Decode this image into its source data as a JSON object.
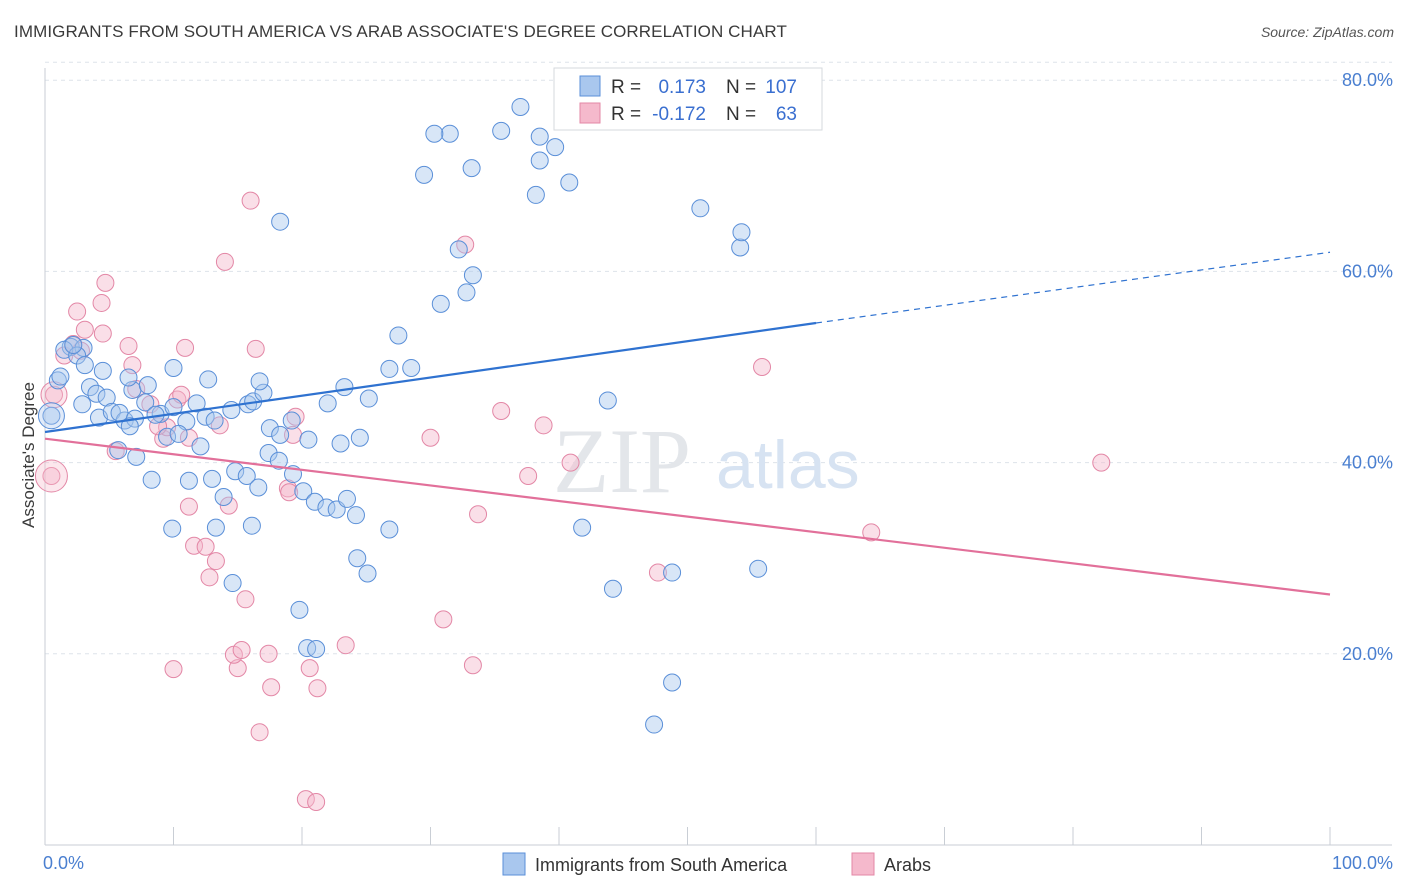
{
  "title": "IMMIGRANTS FROM SOUTH AMERICA VS ARAB ASSOCIATE'S DEGREE CORRELATION CHART",
  "source": "Source: ZipAtlas.com",
  "watermark": {
    "zip": "ZIP",
    "atlas": "atlas"
  },
  "colors": {
    "blue_fill": "#a9c7ee",
    "blue_stroke": "#5a8fd8",
    "blue_line": "#2f72d0",
    "pink_fill": "#f5b9cc",
    "pink_stroke": "#e387a6",
    "pink_line": "#e2709a",
    "grid": "#dde3ea",
    "tick_text": "#4a7fd0"
  },
  "legend": {
    "rows": [
      {
        "r_label": "R =",
        "r_value": "0.173",
        "n_label": "N =",
        "n_value": "107"
      },
      {
        "r_label": "R =",
        "r_value": "-0.172",
        "n_label": "N =",
        "n_value": "63"
      }
    ]
  },
  "chart_data": {
    "type": "scatter",
    "title": "IMMIGRANTS FROM SOUTH AMERICA VS ARAB ASSOCIATE'S DEGREE CORRELATION CHART",
    "xlabel": "",
    "ylabel": "Associate's Degree",
    "xlim": [
      0,
      100
    ],
    "ylim": [
      0,
      82
    ],
    "x_tick_labels": [
      "0.0%",
      "100.0%"
    ],
    "y_ticks": [
      20,
      40,
      60,
      80
    ],
    "y_tick_labels": [
      "20.0%",
      "40.0%",
      "60.0%",
      "80.0%"
    ],
    "grid": true,
    "legend_position": "bottom-center",
    "series": [
      {
        "name": "Immigrants from South America",
        "r": 0.173,
        "n": 107,
        "trend": {
          "x0": 0,
          "y0": 43.2,
          "x1": 60,
          "y1": 54.6,
          "dash_x1": 100,
          "dash_y1": 62.0
        },
        "points": [
          [
            2,
            52.1
          ],
          [
            1,
            48.6
          ],
          [
            0.5,
            44.9
          ],
          [
            1.5,
            51.8
          ],
          [
            3,
            52.0
          ],
          [
            2.5,
            51.2
          ],
          [
            3.5,
            47.9
          ],
          [
            4,
            47.2
          ],
          [
            4.8,
            46.8
          ],
          [
            4.2,
            44.7
          ],
          [
            5.2,
            45.3
          ],
          [
            6.2,
            44.4
          ],
          [
            5.8,
            45.2
          ],
          [
            7,
            44.6
          ],
          [
            6.8,
            47.6
          ],
          [
            8,
            48.1
          ],
          [
            7.8,
            46.3
          ],
          [
            9,
            45.1
          ],
          [
            10,
            45.8
          ],
          [
            11,
            44.3
          ],
          [
            11.8,
            46.2
          ],
          [
            12.5,
            44.8
          ],
          [
            13.2,
            44.4
          ],
          [
            14.5,
            45.5
          ],
          [
            12.7,
            48.7
          ],
          [
            10,
            49.9
          ],
          [
            15.8,
            46.1
          ],
          [
            16.2,
            46.4
          ],
          [
            17,
            47.3
          ],
          [
            16.7,
            48.5
          ],
          [
            17.5,
            43.6
          ],
          [
            18.3,
            42.9
          ],
          [
            20.5,
            42.4
          ],
          [
            23,
            42.0
          ],
          [
            24.5,
            42.6
          ],
          [
            25.2,
            46.7
          ],
          [
            26.8,
            49.8
          ],
          [
            28.5,
            49.9
          ],
          [
            27.5,
            53.3
          ],
          [
            30.8,
            56.6
          ],
          [
            32.8,
            57.8
          ],
          [
            33.3,
            59.6
          ],
          [
            32.2,
            62.3
          ],
          [
            29.5,
            70.1
          ],
          [
            31.5,
            74.4
          ],
          [
            30.3,
            74.4
          ],
          [
            33.2,
            70.8
          ],
          [
            35.5,
            74.7
          ],
          [
            37,
            77.2
          ],
          [
            38.2,
            68.0
          ],
          [
            40.8,
            69.3
          ],
          [
            38.5,
            74.1
          ],
          [
            38.5,
            71.6
          ],
          [
            39.7,
            73.0
          ],
          [
            18.3,
            65.2
          ],
          [
            43.8,
            46.5
          ],
          [
            41.8,
            33.2
          ],
          [
            44.2,
            26.8
          ],
          [
            47.4,
            12.6
          ],
          [
            48.8,
            28.5
          ],
          [
            48.8,
            17.0
          ],
          [
            51,
            66.6
          ],
          [
            55.5,
            28.9
          ],
          [
            54.1,
            62.5
          ],
          [
            54.2,
            64.1
          ],
          [
            2.2,
            52.3
          ],
          [
            3.1,
            50.2
          ],
          [
            4.5,
            49.6
          ],
          [
            6.5,
            48.9
          ],
          [
            8.6,
            45.0
          ],
          [
            9.5,
            42.7
          ],
          [
            10.4,
            43.0
          ],
          [
            11.2,
            38.1
          ],
          [
            12.1,
            41.7
          ],
          [
            13.0,
            38.3
          ],
          [
            13.9,
            36.4
          ],
          [
            14.8,
            39.1
          ],
          [
            15.7,
            38.6
          ],
          [
            16.6,
            37.4
          ],
          [
            17.4,
            41.0
          ],
          [
            18.2,
            40.2
          ],
          [
            19.3,
            38.8
          ],
          [
            20.1,
            37.0
          ],
          [
            21.0,
            35.9
          ],
          [
            21.9,
            35.3
          ],
          [
            22.7,
            35.1
          ],
          [
            23.5,
            36.2
          ],
          [
            24.3,
            30.0
          ],
          [
            25.1,
            28.4
          ],
          [
            20.4,
            20.6
          ],
          [
            21.1,
            20.5
          ],
          [
            19.8,
            24.6
          ],
          [
            24.2,
            34.5
          ],
          [
            26.8,
            33.0
          ],
          [
            23.3,
            47.9
          ],
          [
            22.0,
            46.2
          ],
          [
            19.2,
            44.4
          ],
          [
            7.1,
            40.6
          ],
          [
            8.3,
            38.2
          ],
          [
            9.9,
            33.1
          ],
          [
            13.3,
            33.2
          ],
          [
            14.6,
            27.4
          ],
          [
            16.1,
            33.4
          ],
          [
            5.7,
            41.3
          ],
          [
            6.6,
            43.8
          ],
          [
            1.2,
            49.0
          ],
          [
            2.9,
            46.1
          ]
        ]
      },
      {
        "name": "Arabs",
        "r": -0.172,
        "n": 63,
        "trend": {
          "x0": 0,
          "y0": 42.5,
          "x1": 100,
          "y1": 26.2
        },
        "points": [
          [
            0.5,
            38.6
          ],
          [
            0.7,
            47.1
          ],
          [
            1.5,
            51.2
          ],
          [
            2.2,
            52.4
          ],
          [
            2.5,
            55.8
          ],
          [
            3.1,
            53.9
          ],
          [
            4.5,
            53.5
          ],
          [
            4.4,
            56.7
          ],
          [
            4.7,
            58.8
          ],
          [
            6.5,
            52.2
          ],
          [
            6.8,
            50.2
          ],
          [
            7.1,
            47.7
          ],
          [
            8.2,
            46.1
          ],
          [
            9.2,
            42.5
          ],
          [
            9.5,
            43.7
          ],
          [
            10.3,
            46.6
          ],
          [
            10.6,
            47.1
          ],
          [
            10.9,
            52.0
          ],
          [
            11.2,
            42.6
          ],
          [
            11.2,
            35.4
          ],
          [
            11.6,
            31.3
          ],
          [
            12.5,
            31.2
          ],
          [
            12.8,
            28.0
          ],
          [
            13.3,
            29.7
          ],
          [
            13.6,
            43.9
          ],
          [
            14.0,
            61.0
          ],
          [
            14.3,
            35.5
          ],
          [
            15.0,
            18.5
          ],
          [
            14.7,
            19.9
          ],
          [
            15.3,
            20.4
          ],
          [
            15.6,
            25.7
          ],
          [
            16.0,
            67.4
          ],
          [
            16.4,
            51.9
          ],
          [
            16.7,
            11.8
          ],
          [
            17.4,
            20.0
          ],
          [
            17.6,
            16.5
          ],
          [
            18.9,
            37.3
          ],
          [
            19.0,
            36.9
          ],
          [
            19.3,
            42.9
          ],
          [
            19.5,
            44.8
          ],
          [
            20.6,
            18.5
          ],
          [
            21.2,
            16.4
          ],
          [
            20.3,
            4.8
          ],
          [
            21.1,
            4.5
          ],
          [
            23.4,
            20.9
          ],
          [
            30.0,
            42.6
          ],
          [
            31.0,
            23.6
          ],
          [
            32.7,
            62.8
          ],
          [
            33.3,
            18.8
          ],
          [
            33.7,
            34.6
          ],
          [
            35.5,
            45.4
          ],
          [
            37.6,
            38.6
          ],
          [
            38.8,
            43.9
          ],
          [
            40.9,
            40.0
          ],
          [
            47.7,
            28.5
          ],
          [
            48.6,
            79.4
          ],
          [
            55.8,
            50.0
          ],
          [
            64.3,
            32.7
          ],
          [
            82.2,
            40.0
          ],
          [
            2.8,
            51.7
          ],
          [
            5.5,
            41.2
          ],
          [
            8.8,
            43.8
          ],
          [
            10.0,
            18.4
          ]
        ]
      }
    ]
  }
}
